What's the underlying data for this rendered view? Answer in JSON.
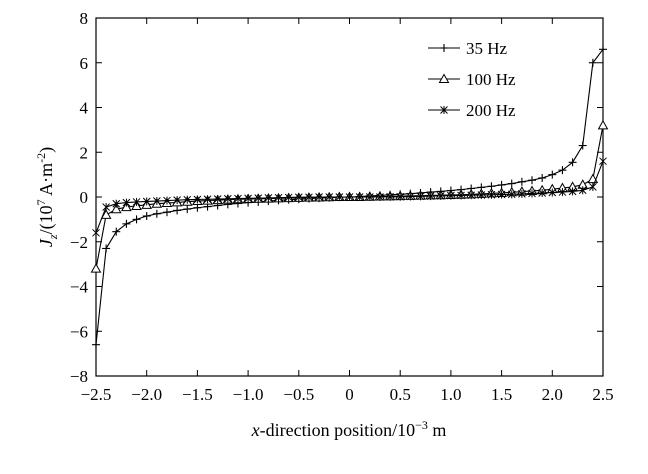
{
  "chart_data": {
    "type": "line",
    "title": "",
    "xlabel": "x-direction position/10⁻³ m",
    "ylabel": "Jz/(10⁷ A·m⁻²)",
    "ylabel_parts": {
      "main": "J",
      "sub": "z",
      "rest1": "/(10",
      "sup1": "7",
      "rest2": " A·m",
      "sup2": "-2",
      "rest3": ")"
    },
    "xlabel_parts": {
      "italic": "x",
      "rest1": "-direction position/10",
      "sup": "−3",
      "rest2": " m"
    },
    "xlim": [
      -2.5,
      2.5
    ],
    "ylim": [
      -8,
      8
    ],
    "x_ticks": [
      -2.5,
      -2.0,
      -1.5,
      -1.0,
      -0.5,
      0,
      0.5,
      1.0,
      1.5,
      2.0,
      2.5
    ],
    "x_tick_labels": [
      "−2.5",
      "−2.0",
      "−1.5",
      "−1.0",
      "−0.5",
      "0",
      "0.5",
      "1.0",
      "1.5",
      "2.0",
      "2.5"
    ],
    "y_ticks": [
      -8,
      -6,
      -4,
      -2,
      0,
      2,
      4,
      6,
      8
    ],
    "y_tick_labels": [
      "−8",
      "−6",
      "−4",
      "−2",
      "0",
      "2",
      "4",
      "6",
      "8"
    ],
    "grid": false,
    "legend_position": "top-right",
    "x": [
      -2.5,
      -2.4,
      -2.3,
      -2.2,
      -2.1,
      -2.0,
      -1.9,
      -1.8,
      -1.7,
      -1.6,
      -1.5,
      -1.4,
      -1.3,
      -1.2,
      -1.1,
      -1.0,
      -0.9,
      -0.8,
      -0.7,
      -0.6,
      -0.5,
      -0.4,
      -0.3,
      -0.2,
      -0.1,
      0.0,
      0.1,
      0.2,
      0.3,
      0.4,
      0.5,
      0.6,
      0.7,
      0.8,
      0.9,
      1.0,
      1.1,
      1.2,
      1.3,
      1.4,
      1.5,
      1.6,
      1.7,
      1.8,
      1.9,
      2.0,
      2.1,
      2.2,
      2.3,
      2.4,
      2.5
    ],
    "series": [
      {
        "name": "35 Hz",
        "marker": "plus",
        "values": [
          -6.6,
          -2.3,
          -1.55,
          -1.2,
          -1.0,
          -0.85,
          -0.75,
          -0.68,
          -0.6,
          -0.54,
          -0.48,
          -0.43,
          -0.38,
          -0.33,
          -0.29,
          -0.25,
          -0.22,
          -0.18,
          -0.15,
          -0.12,
          -0.1,
          -0.07,
          -0.05,
          -0.03,
          -0.01,
          0.0,
          0.02,
          0.05,
          0.07,
          0.1,
          0.12,
          0.15,
          0.18,
          0.22,
          0.25,
          0.29,
          0.33,
          0.38,
          0.43,
          0.48,
          0.54,
          0.6,
          0.68,
          0.75,
          0.85,
          1.0,
          1.2,
          1.55,
          2.3,
          6.0,
          6.6
        ]
      },
      {
        "name": "100 Hz",
        "marker": "triangle",
        "values": [
          -3.2,
          -0.8,
          -0.55,
          -0.45,
          -0.4,
          -0.35,
          -0.3,
          -0.27,
          -0.24,
          -0.21,
          -0.18,
          -0.16,
          -0.14,
          -0.12,
          -0.1,
          -0.09,
          -0.08,
          -0.07,
          -0.06,
          -0.05,
          -0.04,
          -0.03,
          -0.02,
          -0.01,
          0.0,
          0.0,
          0.0,
          0.01,
          0.02,
          0.03,
          0.04,
          0.05,
          0.06,
          0.07,
          0.08,
          0.09,
          0.1,
          0.12,
          0.14,
          0.16,
          0.18,
          0.21,
          0.24,
          0.27,
          0.3,
          0.35,
          0.4,
          0.45,
          0.55,
          0.8,
          3.2
        ]
      },
      {
        "name": "200 Hz",
        "marker": "asterisk",
        "values": [
          -1.6,
          -0.45,
          -0.3,
          -0.25,
          -0.22,
          -0.2,
          -0.18,
          -0.16,
          -0.14,
          -0.12,
          -0.11,
          -0.1,
          -0.09,
          -0.08,
          -0.07,
          -0.06,
          -0.05,
          -0.04,
          -0.03,
          -0.02,
          -0.01,
          -0.01,
          0.0,
          0.0,
          0.0,
          0.0,
          0.0,
          0.0,
          0.0,
          0.01,
          0.01,
          0.02,
          0.03,
          0.04,
          0.05,
          0.06,
          0.07,
          0.08,
          0.09,
          0.1,
          0.11,
          0.12,
          0.14,
          0.16,
          0.18,
          0.2,
          0.22,
          0.25,
          0.3,
          0.45,
          1.6
        ]
      }
    ]
  }
}
